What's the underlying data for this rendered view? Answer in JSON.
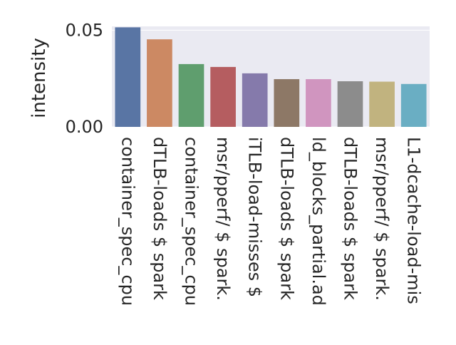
{
  "chart_data": {
    "type": "bar",
    "title": "",
    "xlabel": "",
    "ylabel": "intensity",
    "ylim": [
      0,
      0.052
    ],
    "yticks": [
      0,
      0.05
    ],
    "ytick_labels": [
      "0.00",
      "0.05"
    ],
    "grid": true,
    "background": "#eaeaf2",
    "categories": [
      "container_spec_cpu",
      "dTLB-loads $ spark",
      "container_spec_cpu",
      "msr/pperf/ $ spark.",
      "iTLB-load-misses $",
      "dTLB-loads $ spark",
      "ld_blocks_partial.ad",
      "dTLB-loads $ spark",
      "msr/pperf/ $ spark.",
      "L1-dcache-load-mis"
    ],
    "values": [
      0.0515,
      0.0453,
      0.0325,
      0.031,
      0.0277,
      0.0247,
      0.0247,
      0.0236,
      0.0234,
      0.0222
    ],
    "colors": [
      "#5975a4",
      "#cc8963",
      "#5f9e6e",
      "#b55d60",
      "#857aab",
      "#8d7866",
      "#d095bf",
      "#8c8c8c",
      "#c1b37f",
      "#6aaec3"
    ]
  }
}
